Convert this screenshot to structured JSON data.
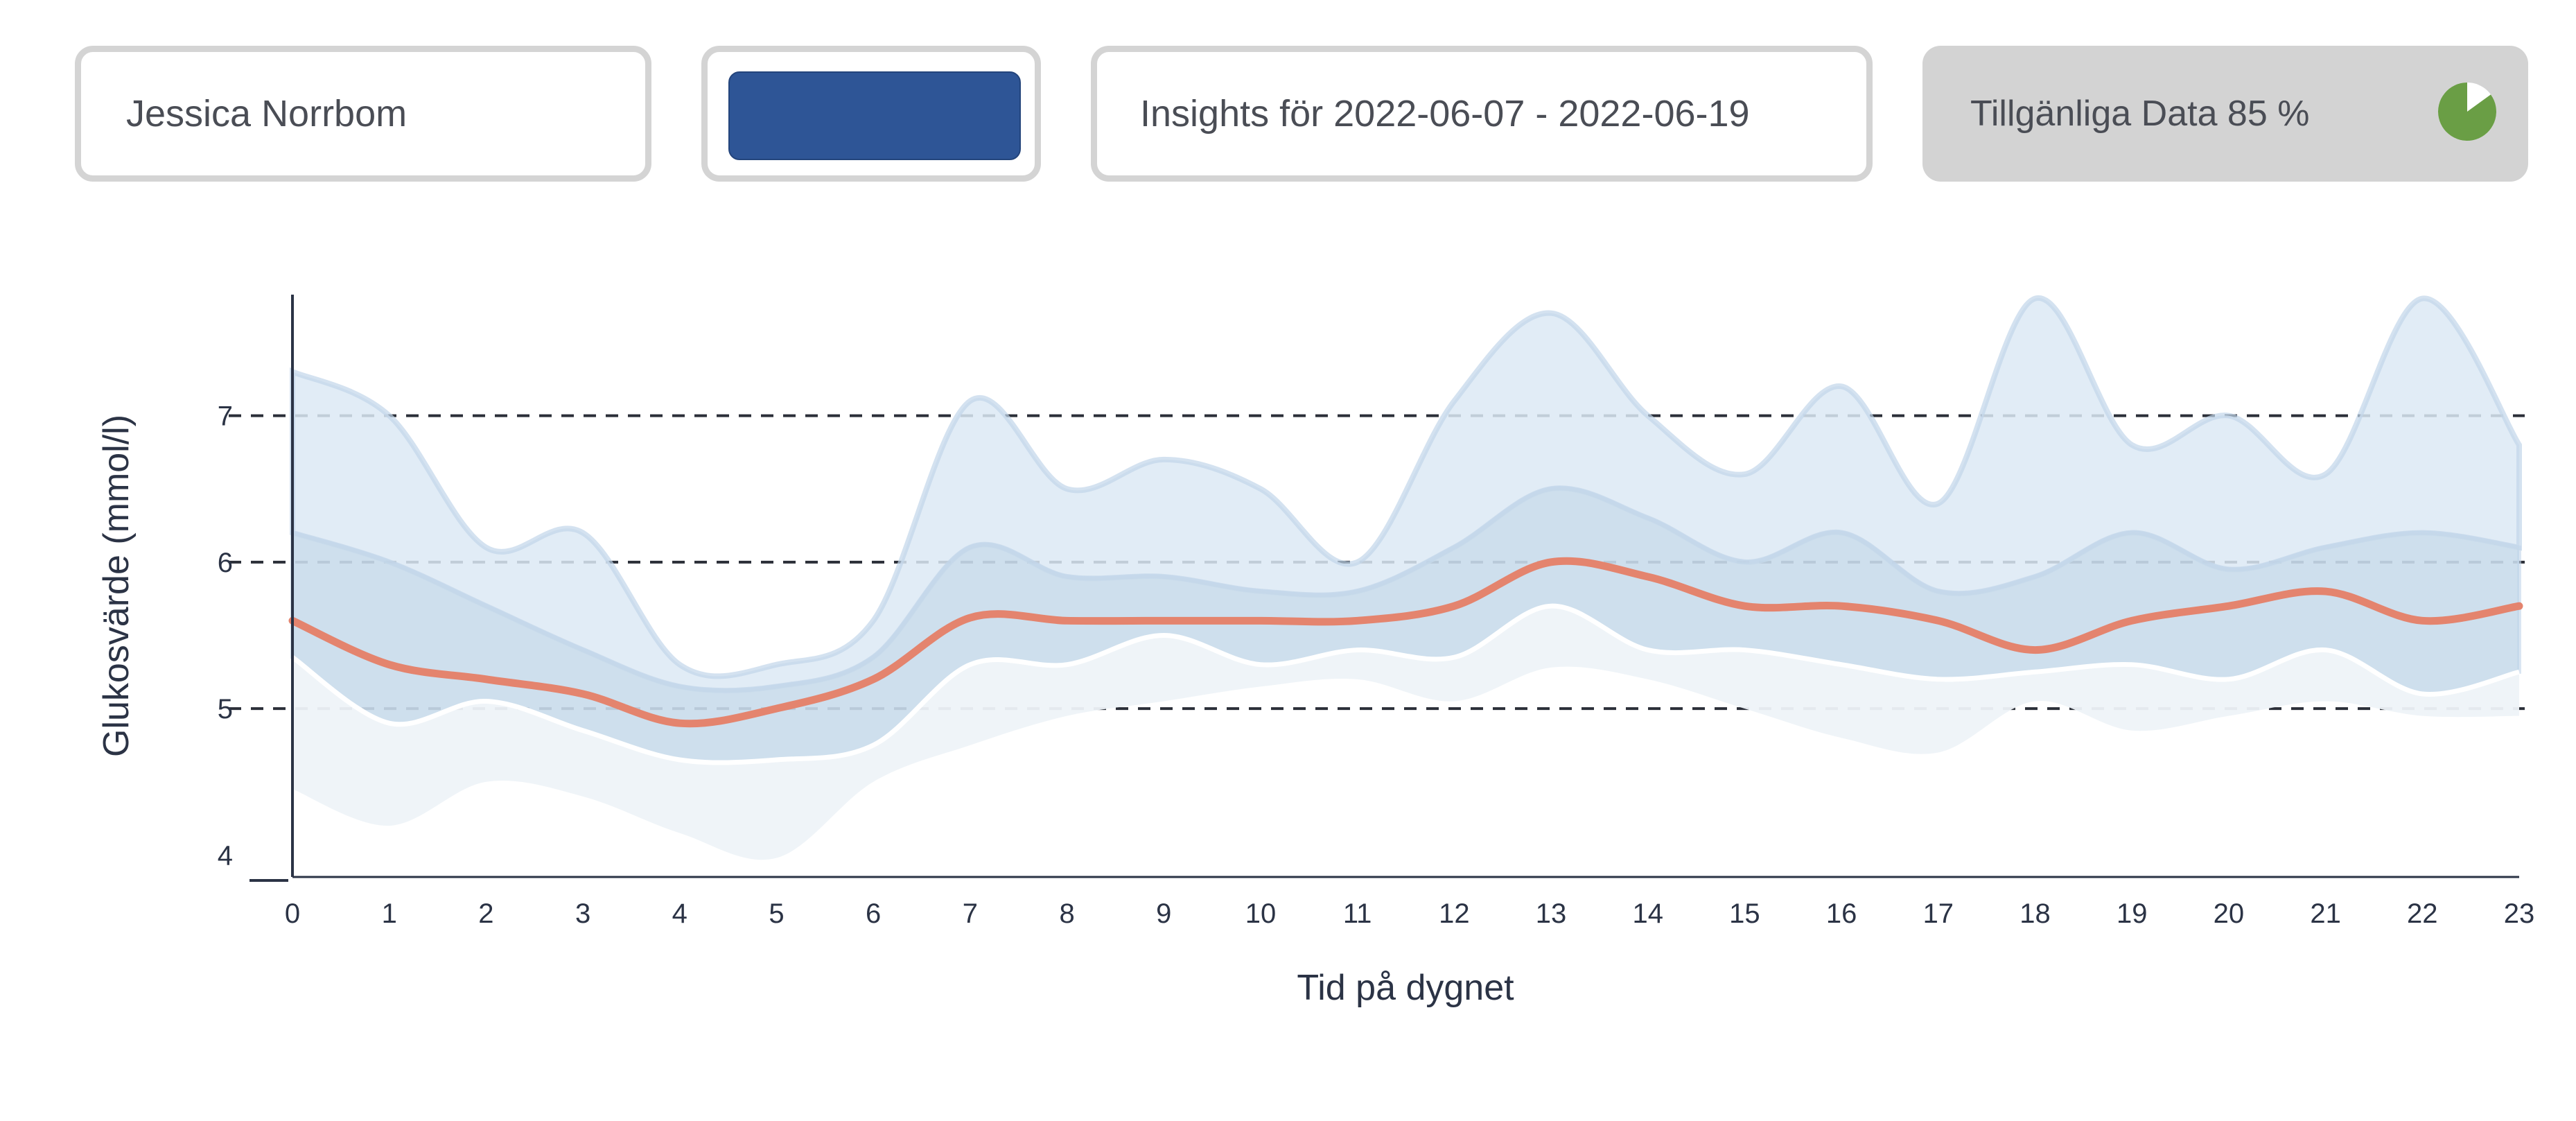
{
  "header": {
    "patient_name": "Jessica Norrbom",
    "action_button_label": "",
    "insights_range": "Insights för 2022-06-07 - 2022-06-19",
    "available_data_label": "Tillgänliga Data 85 %",
    "available_data_fraction": 0.85
  },
  "colors": {
    "median_line": "#e4846e",
    "band_outer": "#dce9f4",
    "band_inner": "#c9dbeb",
    "band_low": "#eef3f8",
    "band_edge": "#c2d6ea",
    "button": "#2e5596",
    "pie_fill": "#6a9e45",
    "pie_rest": "#ffffff"
  },
  "chart_data": {
    "type": "area",
    "xlabel": "Tid på dygnet",
    "ylabel": "Glukosvärde (mmol/l)",
    "x": [
      0,
      1,
      2,
      3,
      4,
      5,
      6,
      7,
      8,
      9,
      10,
      11,
      12,
      13,
      14,
      15,
      16,
      17,
      18,
      19,
      20,
      21,
      22,
      23
    ],
    "x_ticks": [
      "0",
      "1",
      "2",
      "3",
      "4",
      "5",
      "6",
      "7",
      "8",
      "9",
      "10",
      "11",
      "12",
      "13",
      "14",
      "15",
      "16",
      "17",
      "18",
      "19",
      "20",
      "21",
      "22",
      "23"
    ],
    "y_ticks": [
      "4",
      "5",
      "6",
      "7"
    ],
    "ylim": [
      3.85,
      7.85
    ],
    "xlim": [
      0,
      23
    ],
    "reference_lines": [
      5,
      6,
      7
    ],
    "series": [
      {
        "name": "",
        "role": "outer_upper",
        "values": [
          7.3,
          7.0,
          6.1,
          6.2,
          5.3,
          5.3,
          5.6,
          7.1,
          6.5,
          6.7,
          6.5,
          6.0,
          7.1,
          7.7,
          7.0,
          6.6,
          7.2,
          6.4,
          7.8,
          6.8,
          7.0,
          6.6,
          7.8,
          6.8
        ]
      },
      {
        "name": "",
        "role": "inner_upper",
        "values": [
          6.2,
          6.0,
          5.7,
          5.4,
          5.15,
          5.15,
          5.35,
          6.1,
          5.9,
          5.9,
          5.8,
          5.8,
          6.1,
          6.5,
          6.3,
          6.0,
          6.2,
          5.8,
          5.9,
          6.2,
          5.95,
          6.1,
          6.2,
          6.1
        ]
      },
      {
        "name": "",
        "role": "median",
        "values": [
          5.6,
          5.3,
          5.2,
          5.1,
          4.9,
          5.0,
          5.2,
          5.62,
          5.6,
          5.6,
          5.6,
          5.6,
          5.7,
          6.0,
          5.9,
          5.7,
          5.7,
          5.6,
          5.4,
          5.6,
          5.7,
          5.8,
          5.6,
          5.7
        ]
      },
      {
        "name": "",
        "role": "inner_lower",
        "values": [
          5.35,
          4.9,
          5.05,
          4.85,
          4.65,
          4.65,
          4.75,
          5.3,
          5.3,
          5.5,
          5.3,
          5.4,
          5.35,
          5.7,
          5.4,
          5.4,
          5.3,
          5.2,
          5.25,
          5.3,
          5.2,
          5.4,
          5.1,
          5.25
        ]
      },
      {
        "name": "",
        "role": "outer_lower",
        "values": [
          4.45,
          4.2,
          4.5,
          4.4,
          4.15,
          3.98,
          4.5,
          4.75,
          4.95,
          5.05,
          5.15,
          5.2,
          5.05,
          5.28,
          5.2,
          5.0,
          4.8,
          4.7,
          5.05,
          4.85,
          4.95,
          5.05,
          4.95,
          4.95
        ]
      }
    ]
  }
}
